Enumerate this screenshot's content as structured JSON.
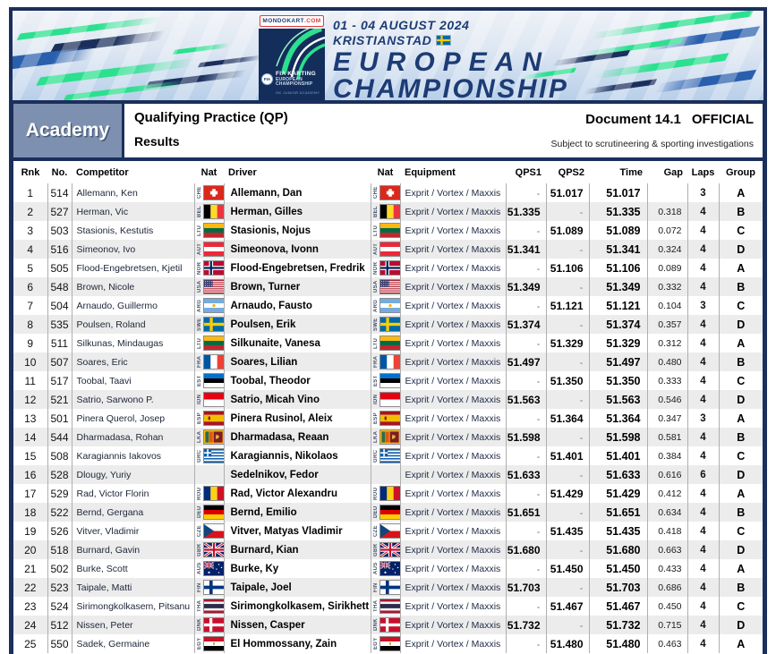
{
  "colors": {
    "navy": "#1b2f5c",
    "navy_text": "#1d3c75",
    "accent_green": "#2be08e",
    "mid_blue": "#2a5fae",
    "slate": "#7d90af",
    "row_alt": "#ececec",
    "divider": "#afafaf",
    "red": "#e03a3a"
  },
  "banner": {
    "badge": {
      "brand": "MONDOKART",
      "tld": ".COM"
    },
    "logo": {
      "org": "FIA",
      "title": "FIA KARTING",
      "sub1": "EUROPEAN",
      "sub2": "CHAMPIONSHIP",
      "sub3": "OK JUNIOR ACADEMY"
    },
    "dates": "01 - 04 AUGUST 2024",
    "location": "KRISTIANSTAD",
    "location_flag": "SWE",
    "title_line1": "EUROPEAN",
    "title_line2": "CHAMPIONSHIP"
  },
  "header": {
    "class_label": "Academy",
    "session_title": "Qualifying Practice (QP)",
    "subtitle": "Results",
    "document_label": "Document 14.1",
    "status": "OFFICIAL",
    "disclaimer": "Subject to scrutineering & sporting investigations"
  },
  "table": {
    "columns": [
      "Rnk",
      "No.",
      "Competitor",
      "Nat",
      "Driver",
      "Nat",
      "Equipment",
      "QPS1",
      "QPS2",
      "Time",
      "Gap",
      "Laps",
      "Group"
    ],
    "rows": [
      {
        "rnk": "1",
        "no": "514",
        "competitor": "Allemann, Ken",
        "nat": "CHE",
        "driver": "Allemann, Dan",
        "equipment": "Exprit / Vortex / Maxxis",
        "qps1": "-",
        "qps2": "51.017",
        "time": "51.017",
        "gap": "",
        "laps": "3",
        "group": "A"
      },
      {
        "rnk": "2",
        "no": "527",
        "competitor": "Herman, Vic",
        "nat": "BEL",
        "driver": "Herman, Gilles",
        "equipment": "Exprit / Vortex / Maxxis",
        "qps1": "51.335",
        "qps2": "-",
        "time": "51.335",
        "gap": "0.318",
        "laps": "4",
        "group": "B"
      },
      {
        "rnk": "3",
        "no": "503",
        "competitor": "Stasionis, Kestutis",
        "nat": "LTU",
        "driver": "Stasionis, Nojus",
        "equipment": "Exprit / Vortex / Maxxis",
        "qps1": "-",
        "qps2": "51.089",
        "time": "51.089",
        "gap": "0.072",
        "laps": "4",
        "group": "C"
      },
      {
        "rnk": "4",
        "no": "516",
        "competitor": "Simeonov, Ivo",
        "nat": "AUT",
        "driver": "Simeonova, Ivonn",
        "equipment": "Exprit / Vortex / Maxxis",
        "qps1": "51.341",
        "qps2": "-",
        "time": "51.341",
        "gap": "0.324",
        "laps": "4",
        "group": "D"
      },
      {
        "rnk": "5",
        "no": "505",
        "competitor": "Flood-Engebretsen, Kjetil",
        "nat": "NOR",
        "driver": "Flood-Engebretsen, Fredrik",
        "equipment": "Exprit / Vortex / Maxxis",
        "qps1": "-",
        "qps2": "51.106",
        "time": "51.106",
        "gap": "0.089",
        "laps": "4",
        "group": "A"
      },
      {
        "rnk": "6",
        "no": "548",
        "competitor": "Brown, Nicole",
        "nat": "USA",
        "driver": "Brown, Turner",
        "equipment": "Exprit / Vortex / Maxxis",
        "qps1": "51.349",
        "qps2": "-",
        "time": "51.349",
        "gap": "0.332",
        "laps": "4",
        "group": "B"
      },
      {
        "rnk": "7",
        "no": "504",
        "competitor": "Arnaudo, Guillermo",
        "nat": "ARG",
        "driver": "Arnaudo, Fausto",
        "equipment": "Exprit / Vortex / Maxxis",
        "qps1": "-",
        "qps2": "51.121",
        "time": "51.121",
        "gap": "0.104",
        "laps": "3",
        "group": "C"
      },
      {
        "rnk": "8",
        "no": "535",
        "competitor": "Poulsen, Roland",
        "nat": "SWE",
        "driver": "Poulsen, Erik",
        "equipment": "Exprit / Vortex / Maxxis",
        "qps1": "51.374",
        "qps2": "-",
        "time": "51.374",
        "gap": "0.357",
        "laps": "4",
        "group": "D"
      },
      {
        "rnk": "9",
        "no": "511",
        "competitor": "Silkunas, Mindaugas",
        "nat": "LTU",
        "driver": "Silkunaite, Vanesa",
        "equipment": "Exprit / Vortex / Maxxis",
        "qps1": "-",
        "qps2": "51.329",
        "time": "51.329",
        "gap": "0.312",
        "laps": "4",
        "group": "A"
      },
      {
        "rnk": "10",
        "no": "507",
        "competitor": "Soares, Eric",
        "nat": "FRA",
        "driver": "Soares, Lilian",
        "equipment": "Exprit / Vortex / Maxxis",
        "qps1": "51.497",
        "qps2": "-",
        "time": "51.497",
        "gap": "0.480",
        "laps": "4",
        "group": "B"
      },
      {
        "rnk": "11",
        "no": "517",
        "competitor": "Toobal, Taavi",
        "nat": "EST",
        "driver": "Toobal, Theodor",
        "equipment": "Exprit / Vortex / Maxxis",
        "qps1": "-",
        "qps2": "51.350",
        "time": "51.350",
        "gap": "0.333",
        "laps": "4",
        "group": "C"
      },
      {
        "rnk": "12",
        "no": "521",
        "competitor": "Satrio, Sarwono P.",
        "nat": "IDN",
        "driver": "Satrio, Micah Vino",
        "equipment": "Exprit / Vortex / Maxxis",
        "qps1": "51.563",
        "qps2": "-",
        "time": "51.563",
        "gap": "0.546",
        "laps": "4",
        "group": "D"
      },
      {
        "rnk": "13",
        "no": "501",
        "competitor": "Pinera Querol, Josep",
        "nat": "ESP",
        "driver": "Pinera Rusinol, Aleix",
        "equipment": "Exprit / Vortex / Maxxis",
        "qps1": "-",
        "qps2": "51.364",
        "time": "51.364",
        "gap": "0.347",
        "laps": "3",
        "group": "A"
      },
      {
        "rnk": "14",
        "no": "544",
        "competitor": "Dharmadasa, Rohan",
        "nat": "LKA",
        "driver": "Dharmadasa, Reaan",
        "equipment": "Exprit / Vortex / Maxxis",
        "qps1": "51.598",
        "qps2": "-",
        "time": "51.598",
        "gap": "0.581",
        "laps": "4",
        "group": "B"
      },
      {
        "rnk": "15",
        "no": "508",
        "competitor": "Karagiannis Iakovos",
        "nat": "GRC",
        "driver": "Karagiannis, Nikolaos",
        "equipment": "Exprit / Vortex / Maxxis",
        "qps1": "-",
        "qps2": "51.401",
        "time": "51.401",
        "gap": "0.384",
        "laps": "4",
        "group": "C"
      },
      {
        "rnk": "16",
        "no": "528",
        "competitor": "Dlougy, Yuriy",
        "nat": "",
        "driver": "Sedelnikov, Fedor",
        "equipment": "Exprit / Vortex / Maxxis",
        "qps1": "51.633",
        "qps2": "-",
        "time": "51.633",
        "gap": "0.616",
        "laps": "6",
        "group": "D"
      },
      {
        "rnk": "17",
        "no": "529",
        "competitor": "Rad, Victor Florin",
        "nat": "ROU",
        "driver": "Rad, Victor Alexandru",
        "equipment": "Exprit / Vortex / Maxxis",
        "qps1": "-",
        "qps2": "51.429",
        "time": "51.429",
        "gap": "0.412",
        "laps": "4",
        "group": "A"
      },
      {
        "rnk": "18",
        "no": "522",
        "competitor": "Bernd, Gergana",
        "nat": "DEU",
        "driver": "Bernd, Emilio",
        "equipment": "Exprit / Vortex / Maxxis",
        "qps1": "51.651",
        "qps2": "-",
        "time": "51.651",
        "gap": "0.634",
        "laps": "4",
        "group": "B"
      },
      {
        "rnk": "19",
        "no": "526",
        "competitor": "Vitver, Vladimir",
        "nat": "CZE",
        "driver": "Vitver, Matyas Vladimir",
        "equipment": "Exprit / Vortex / Maxxis",
        "qps1": "-",
        "qps2": "51.435",
        "time": "51.435",
        "gap": "0.418",
        "laps": "4",
        "group": "C"
      },
      {
        "rnk": "20",
        "no": "518",
        "competitor": "Burnard, Gavin",
        "nat": "GBR",
        "driver": "Burnard, Kian",
        "equipment": "Exprit / Vortex / Maxxis",
        "qps1": "51.680",
        "qps2": "-",
        "time": "51.680",
        "gap": "0.663",
        "laps": "4",
        "group": "D"
      },
      {
        "rnk": "21",
        "no": "502",
        "competitor": "Burke, Scott",
        "nat": "AUS",
        "driver": "Burke, Ky",
        "equipment": "Exprit / Vortex / Maxxis",
        "qps1": "-",
        "qps2": "51.450",
        "time": "51.450",
        "gap": "0.433",
        "laps": "4",
        "group": "A"
      },
      {
        "rnk": "22",
        "no": "523",
        "competitor": "Taipale, Matti",
        "nat": "FIN",
        "driver": "Taipale, Joel",
        "equipment": "Exprit / Vortex / Maxxis",
        "qps1": "51.703",
        "qps2": "-",
        "time": "51.703",
        "gap": "0.686",
        "laps": "4",
        "group": "B"
      },
      {
        "rnk": "23",
        "no": "524",
        "competitor": "Sirimongkolkasem, Pitsanu",
        "nat": "THA",
        "driver": "Sirimongkolkasem, Sirikhett",
        "equipment": "Exprit / Vortex / Maxxis",
        "qps1": "-",
        "qps2": "51.467",
        "time": "51.467",
        "gap": "0.450",
        "laps": "4",
        "group": "C"
      },
      {
        "rnk": "24",
        "no": "512",
        "competitor": "Nissen, Peter",
        "nat": "DNK",
        "driver": "Nissen, Casper",
        "equipment": "Exprit / Vortex / Maxxis",
        "qps1": "51.732",
        "qps2": "-",
        "time": "51.732",
        "gap": "0.715",
        "laps": "4",
        "group": "D"
      },
      {
        "rnk": "25",
        "no": "550",
        "competitor": "Sadek, Germaine",
        "nat": "EGY",
        "driver": "El Hommossany, Zain",
        "equipment": "Exprit / Vortex / Maxxis",
        "qps1": "-",
        "qps2": "51.480",
        "time": "51.480",
        "gap": "0.463",
        "laps": "4",
        "group": "A"
      }
    ]
  }
}
